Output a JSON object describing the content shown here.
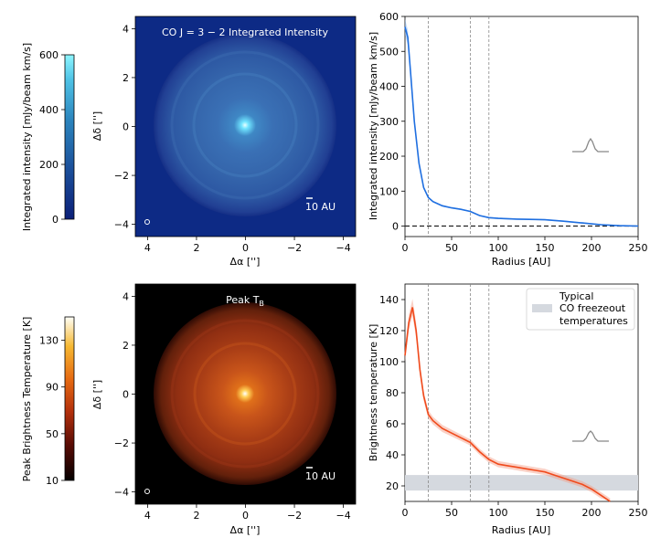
{
  "chart_data": [
    {
      "type": "heatmap",
      "id": "co-map",
      "title": "CO J = 3 − 2 Integrated Intensity",
      "xlabel": "Δα ['']",
      "ylabel": "Δδ ['']",
      "xlim": [
        4.5,
        -4.5
      ],
      "ylim": [
        -4.5,
        4.5
      ],
      "xticks": [
        4,
        2,
        0,
        -2,
        -4
      ],
      "yticks": [
        4,
        2,
        0,
        -2,
        -4
      ],
      "scalebar_label": "10 AU",
      "colorbar": {
        "label": "Integrated intensity [mJy/beam km/s]",
        "range": [
          0,
          600
        ],
        "ticks": [
          0,
          200,
          400,
          600
        ]
      }
    },
    {
      "type": "line",
      "id": "co-profile",
      "xlabel": "Radius [AU]",
      "ylabel": "Integrated intensity [mJy/beam km/s]",
      "xlim": [
        0,
        250
      ],
      "ylim": [
        -30,
        600
      ],
      "xticks": [
        0,
        50,
        100,
        150,
        200,
        250
      ],
      "yticks": [
        0,
        100,
        200,
        300,
        400,
        500,
        600
      ],
      "vlines": [
        25,
        70,
        90
      ],
      "hline": 0,
      "series": [
        {
          "name": "CO integrated intensity",
          "x": [
            0,
            3,
            6,
            10,
            15,
            20,
            25,
            30,
            40,
            50,
            60,
            70,
            80,
            90,
            100,
            120,
            140,
            150,
            170,
            190,
            210,
            230,
            250
          ],
          "y": [
            570,
            540,
            440,
            300,
            180,
            110,
            82,
            70,
            58,
            52,
            48,
            42,
            30,
            24,
            22,
            20,
            19,
            18,
            14,
            9,
            4,
            1,
            0
          ]
        }
      ]
    },
    {
      "type": "heatmap",
      "id": "peak-map",
      "title": "Peak T",
      "title_sub": "B",
      "xlabel": "Δα ['']",
      "ylabel": "Δδ ['']",
      "xlim": [
        4.5,
        -4.5
      ],
      "ylim": [
        -4.5,
        4.5
      ],
      "xticks": [
        4,
        2,
        0,
        -2,
        -4
      ],
      "yticks": [
        4,
        2,
        0,
        -2,
        -4
      ],
      "scalebar_label": "10 AU",
      "colorbar": {
        "label": "Peak Brightness Temperature [K]",
        "range": [
          10,
          150
        ],
        "ticks": [
          10,
          50,
          90,
          130
        ]
      }
    },
    {
      "type": "line",
      "id": "tb-profile",
      "xlabel": "Radius [AU]",
      "ylabel": "Brightness temperature [K]",
      "xlim": [
        0,
        250
      ],
      "ylim": [
        10,
        150
      ],
      "xticks": [
        0,
        50,
        100,
        150,
        200,
        250
      ],
      "yticks": [
        20,
        40,
        60,
        80,
        100,
        120,
        140
      ],
      "vlines": [
        25,
        70,
        90
      ],
      "band": {
        "range": [
          17,
          27
        ],
        "label": "Typical CO freezeout temperatures",
        "label_lines": [
          "Typical",
          "CO freezeout",
          "temperatures"
        ]
      },
      "series": [
        {
          "name": "Peak brightness temperature",
          "x": [
            0,
            4,
            8,
            12,
            16,
            20,
            25,
            30,
            40,
            50,
            60,
            70,
            80,
            90,
            100,
            110,
            120,
            130,
            140,
            150,
            160,
            170,
            180,
            190,
            200,
            210,
            220
          ],
          "y": [
            104,
            125,
            135,
            120,
            95,
            78,
            66,
            62,
            57,
            54,
            51,
            48,
            42,
            37,
            34,
            33,
            32,
            31,
            30,
            29,
            27,
            25,
            23,
            21,
            18,
            14,
            10
          ]
        }
      ]
    }
  ]
}
